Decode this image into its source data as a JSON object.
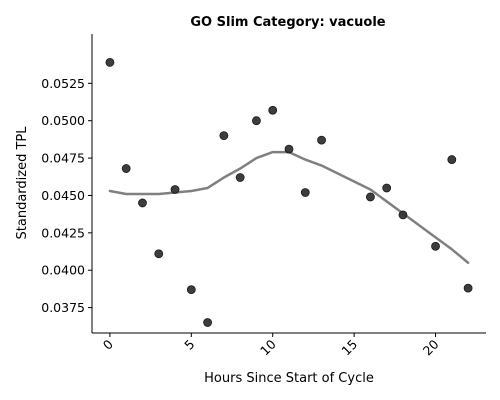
{
  "chart_data": {
    "type": "scatter",
    "title": "GO Slim Category: vacuole",
    "xlabel": "Hours Since Start of Cycle",
    "ylabel": "Standardized TPL",
    "xlim": [
      -1.1,
      23.1
    ],
    "ylim": [
      0.0358,
      0.0558
    ],
    "xticks": [
      0,
      5,
      10,
      15,
      20
    ],
    "xtick_labels": [
      "0",
      "5",
      "10",
      "15",
      "20"
    ],
    "xtick_rotation": 45,
    "yticks": [
      0.0375,
      0.04,
      0.0425,
      0.045,
      0.0475,
      0.05,
      0.0525
    ],
    "ytick_labels": [
      "0.0375",
      "0.0400",
      "0.0425",
      "0.0450",
      "0.0475",
      "0.0500",
      "0.0525"
    ],
    "grid": false,
    "series": [
      {
        "type": "scatter",
        "color": "#333333",
        "x": [
          0,
          1,
          2,
          3,
          4,
          5,
          6,
          7,
          8,
          9,
          10,
          11,
          12,
          13,
          16,
          17,
          18,
          20,
          21,
          22
        ],
        "y": [
          0.0539,
          0.0468,
          0.0445,
          0.0411,
          0.0454,
          0.0387,
          0.0365,
          0.049,
          0.0462,
          0.05,
          0.0507,
          0.0481,
          0.0452,
          0.0487,
          0.0449,
          0.0455,
          0.0437,
          0.0416,
          0.0474,
          0.0388
        ]
      },
      {
        "type": "line",
        "color": "#808080",
        "x": [
          0,
          1,
          2,
          3,
          4,
          5,
          6,
          7,
          8,
          9,
          10,
          11,
          12,
          13,
          16,
          17,
          18,
          20,
          21,
          22
        ],
        "y": [
          0.0453,
          0.0451,
          0.0451,
          0.0451,
          0.0452,
          0.0453,
          0.0455,
          0.0462,
          0.0468,
          0.0475,
          0.0479,
          0.0479,
          0.0474,
          0.047,
          0.0454,
          0.0446,
          0.0438,
          0.0422,
          0.0414,
          0.0405
        ]
      }
    ]
  }
}
